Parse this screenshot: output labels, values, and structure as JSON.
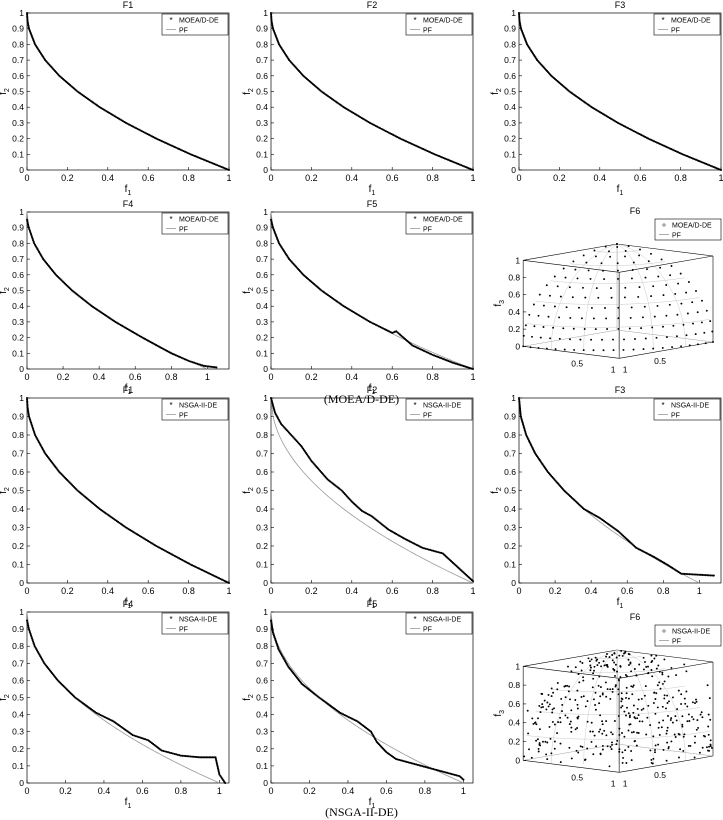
{
  "captions": {
    "top": "(MOEA/D-DE)",
    "bottom": "(NSGA-II-DE)"
  },
  "pf_label": "PF",
  "axis_labels": {
    "x": "f",
    "x_sub": "1",
    "y": "f",
    "y_sub": "2",
    "z": "f",
    "z_sub": "3"
  },
  "colors": {
    "points": "#000000",
    "pf_line": "#999999",
    "axes": "#000000"
  },
  "chart_data": [
    {
      "id": "moead-f1",
      "type": "scatter",
      "title": "F1",
      "legend": "MOEA/D-DE",
      "xlim": [
        0,
        1
      ],
      "ylim": [
        0,
        1
      ],
      "xticks": [
        "0",
        "0.2",
        "0.4",
        "0.6",
        "0.8",
        "1"
      ],
      "yticks": [
        "0",
        "0.1",
        "0.2",
        "0.3",
        "0.4",
        "0.5",
        "0.6",
        "0.7",
        "0.8",
        "0.9",
        "1"
      ],
      "front": "1 - sqrt(x)",
      "legend_position": "top-right",
      "x": [
        0,
        0.0025,
        0.01,
        0.04,
        0.09,
        0.16,
        0.25,
        0.36,
        0.49,
        0.64,
        0.81,
        1
      ],
      "y": [
        1,
        0.95,
        0.9,
        0.8,
        0.7,
        0.6,
        0.5,
        0.4,
        0.3,
        0.2,
        0.1,
        0
      ]
    },
    {
      "id": "moead-f2",
      "type": "scatter",
      "title": "F2",
      "legend": "MOEA/D-DE",
      "xlim": [
        0,
        1
      ],
      "ylim": [
        0,
        1
      ],
      "xticks": [
        "0",
        "0.2",
        "0.4",
        "0.6",
        "0.8",
        "1"
      ],
      "yticks": [
        "0",
        "0.1",
        "0.2",
        "0.3",
        "0.4",
        "0.5",
        "0.6",
        "0.7",
        "0.8",
        "0.9",
        "1"
      ],
      "front": "1 - sqrt(x)",
      "legend_position": "top-right",
      "x": [
        0,
        0.0025,
        0.01,
        0.04,
        0.09,
        0.16,
        0.25,
        0.36,
        0.49,
        0.64,
        0.81,
        1
      ],
      "y": [
        1,
        0.95,
        0.9,
        0.8,
        0.7,
        0.6,
        0.5,
        0.4,
        0.3,
        0.2,
        0.1,
        0
      ]
    },
    {
      "id": "moead-f3",
      "type": "scatter",
      "title": "F3",
      "legend": "MOEA/D-DE",
      "xlim": [
        0,
        1
      ],
      "ylim": [
        0,
        1
      ],
      "xticks": [
        "0",
        "0.2",
        "0.4",
        "0.6",
        "0.8",
        "1"
      ],
      "yticks": [
        "0",
        "0.1",
        "0.2",
        "0.3",
        "0.4",
        "0.5",
        "0.6",
        "0.7",
        "0.8",
        "0.9",
        "1"
      ],
      "front": "1 - sqrt(x)",
      "legend_position": "top-right",
      "x": [
        0,
        0.0025,
        0.01,
        0.04,
        0.09,
        0.16,
        0.25,
        0.36,
        0.49,
        0.64,
        0.81,
        1
      ],
      "y": [
        1,
        0.95,
        0.9,
        0.8,
        0.7,
        0.6,
        0.5,
        0.4,
        0.3,
        0.2,
        0.1,
        0
      ]
    },
    {
      "id": "moead-f4",
      "type": "scatter",
      "title": "F4",
      "legend": "MOEA/D-DE",
      "xlim": [
        0,
        1.12
      ],
      "ylim": [
        0,
        1
      ],
      "xticks": [
        "0",
        "0.2",
        "0.4",
        "0.6",
        "0.8",
        "1"
      ],
      "yticks": [
        "0",
        "0.1",
        "0.2",
        "0.3",
        "0.4",
        "0.5",
        "0.6",
        "0.7",
        "0.8",
        "0.9",
        "1"
      ],
      "front": "1 - sqrt(x)",
      "legend_position": "top-right",
      "x": [
        0,
        0.01,
        0.04,
        0.09,
        0.16,
        0.25,
        0.36,
        0.49,
        0.64,
        0.8,
        0.9,
        0.98,
        1.05
      ],
      "y": [
        0.95,
        0.9,
        0.8,
        0.7,
        0.6,
        0.5,
        0.4,
        0.3,
        0.2,
        0.1,
        0.05,
        0.02,
        0.01
      ]
    },
    {
      "id": "moead-f5",
      "type": "scatter",
      "title": "F5",
      "legend": "MOEA/D-DE",
      "xlim": [
        0,
        1
      ],
      "ylim": [
        0,
        1
      ],
      "xticks": [
        "0",
        "0.2",
        "0.4",
        "0.6",
        "0.8",
        "1"
      ],
      "yticks": [
        "0",
        "0.1",
        "0.2",
        "0.3",
        "0.4",
        "0.5",
        "0.6",
        "0.7",
        "0.8",
        "0.9",
        "1"
      ],
      "front": "1 - sqrt(x)",
      "legend_position": "top-right",
      "x": [
        0,
        0.01,
        0.04,
        0.09,
        0.16,
        0.25,
        0.36,
        0.49,
        0.6,
        0.62,
        0.7,
        0.8,
        0.9,
        1
      ],
      "y": [
        0.95,
        0.9,
        0.8,
        0.7,
        0.6,
        0.5,
        0.4,
        0.3,
        0.23,
        0.24,
        0.15,
        0.09,
        0.04,
        0
      ]
    },
    {
      "id": "moead-f6",
      "type": "scatter3d",
      "title": "F6",
      "legend": "MOEA/D-DE",
      "zticks": [
        "0",
        "0.2",
        "0.4",
        "0.6",
        "0.8",
        "1"
      ],
      "xticks": [
        "0.5",
        "1"
      ],
      "yticks": [
        "0.5",
        "1"
      ],
      "front": "unit sphere octant",
      "distribution": "uniform",
      "legend_position": "top-right"
    },
    {
      "id": "nsga-f1",
      "type": "scatter",
      "title": "F1",
      "legend": "NSGA-II-DE",
      "xlim": [
        0,
        1
      ],
      "ylim": [
        0,
        1
      ],
      "xticks": [
        "0",
        "0.2",
        "0.4",
        "0.6",
        "0.8",
        "1"
      ],
      "yticks": [
        "0",
        "0.1",
        "0.2",
        "0.3",
        "0.4",
        "0.5",
        "0.6",
        "0.7",
        "0.8",
        "0.9",
        "1"
      ],
      "front": "1 - sqrt(x)",
      "legend_position": "top-right",
      "x": [
        0,
        0.0025,
        0.01,
        0.04,
        0.09,
        0.16,
        0.25,
        0.36,
        0.49,
        0.64,
        0.81,
        1
      ],
      "y": [
        1,
        0.95,
        0.9,
        0.8,
        0.7,
        0.6,
        0.5,
        0.4,
        0.3,
        0.2,
        0.1,
        0
      ]
    },
    {
      "id": "nsga-f2",
      "type": "scatter",
      "title": "F2",
      "legend": "NSGA-II-DE",
      "xlim": [
        0,
        1
      ],
      "ylim": [
        0,
        1
      ],
      "xticks": [
        "0",
        "0.2",
        "0.4",
        "0.6",
        "0.8",
        "1"
      ],
      "yticks": [
        "0",
        "0.1",
        "0.2",
        "0.3",
        "0.4",
        "0.5",
        "0.6",
        "0.7",
        "0.8",
        "0.9",
        "1"
      ],
      "front": "1 - sqrt(x)",
      "legend_position": "top-right",
      "x": [
        0,
        0.02,
        0.05,
        0.1,
        0.15,
        0.2,
        0.28,
        0.35,
        0.4,
        0.45,
        0.5,
        0.58,
        0.66,
        0.75,
        0.85,
        0.92,
        1
      ],
      "y": [
        1,
        0.92,
        0.86,
        0.8,
        0.74,
        0.66,
        0.56,
        0.5,
        0.44,
        0.39,
        0.36,
        0.29,
        0.24,
        0.19,
        0.16,
        0.09,
        0.01
      ]
    },
    {
      "id": "nsga-f3",
      "type": "scatter",
      "title": "F3",
      "legend": "NSGA-II-DE",
      "xlim": [
        0,
        1.12
      ],
      "ylim": [
        0,
        1
      ],
      "xticks": [
        "0",
        "0.2",
        "0.4",
        "0.6",
        "0.8",
        "1"
      ],
      "yticks": [
        "0",
        "0.1",
        "0.2",
        "0.3",
        "0.4",
        "0.5",
        "0.6",
        "0.7",
        "0.8",
        "0.9",
        "1"
      ],
      "front": "1 - sqrt(x)",
      "legend_position": "top-right",
      "x": [
        0,
        0.01,
        0.04,
        0.09,
        0.16,
        0.25,
        0.36,
        0.45,
        0.55,
        0.65,
        0.75,
        0.82,
        0.9,
        1.08
      ],
      "y": [
        1,
        0.9,
        0.8,
        0.7,
        0.6,
        0.5,
        0.4,
        0.35,
        0.28,
        0.19,
        0.14,
        0.1,
        0.05,
        0.04
      ]
    },
    {
      "id": "nsga-f4",
      "type": "scatter",
      "title": "F4",
      "legend": "NSGA-II-DE",
      "xlim": [
        0,
        1.05
      ],
      "ylim": [
        0,
        1
      ],
      "xticks": [
        "0",
        "0.2",
        "0.4",
        "0.6",
        "0.8",
        "1"
      ],
      "yticks": [
        "0",
        "0.1",
        "0.2",
        "0.3",
        "0.4",
        "0.5",
        "0.6",
        "0.7",
        "0.8",
        "0.9",
        "1"
      ],
      "front": "1 - sqrt(x)",
      "legend_position": "top-right",
      "x": [
        0,
        0.01,
        0.04,
        0.09,
        0.16,
        0.25,
        0.36,
        0.45,
        0.55,
        0.63,
        0.7,
        0.8,
        0.9,
        0.98,
        1,
        1.03
      ],
      "y": [
        0.95,
        0.9,
        0.8,
        0.7,
        0.6,
        0.5,
        0.41,
        0.36,
        0.28,
        0.25,
        0.19,
        0.16,
        0.15,
        0.15,
        0.05,
        0
      ]
    },
    {
      "id": "nsga-f5",
      "type": "scatter",
      "title": "F5",
      "legend": "NSGA-II-DE",
      "xlim": [
        0,
        1.05
      ],
      "ylim": [
        0,
        1
      ],
      "xticks": [
        "0",
        "0.2",
        "0.4",
        "0.6",
        "0.8",
        "1"
      ],
      "yticks": [
        "0",
        "0.1",
        "0.2",
        "0.3",
        "0.4",
        "0.5",
        "0.6",
        "0.7",
        "0.8",
        "0.9",
        "1"
      ],
      "front": "1 - sqrt(x)",
      "legend_position": "top-right",
      "x": [
        0,
        0.01,
        0.04,
        0.09,
        0.16,
        0.25,
        0.36,
        0.45,
        0.52,
        0.55,
        0.6,
        0.65,
        0.98,
        1
      ],
      "y": [
        0.95,
        0.88,
        0.78,
        0.68,
        0.58,
        0.5,
        0.41,
        0.36,
        0.3,
        0.24,
        0.18,
        0.14,
        0.04,
        0.02
      ]
    },
    {
      "id": "nsga-f6",
      "type": "scatter3d",
      "title": "F6",
      "legend": "NSGA-II-DE",
      "zticks": [
        "0",
        "0.2",
        "0.4",
        "0.6",
        "0.8",
        "1"
      ],
      "xticks": [
        "0.5",
        "1"
      ],
      "yticks": [
        "0.5",
        "1"
      ],
      "front": "unit sphere octant",
      "distribution": "scattered",
      "legend_position": "top-right"
    }
  ]
}
